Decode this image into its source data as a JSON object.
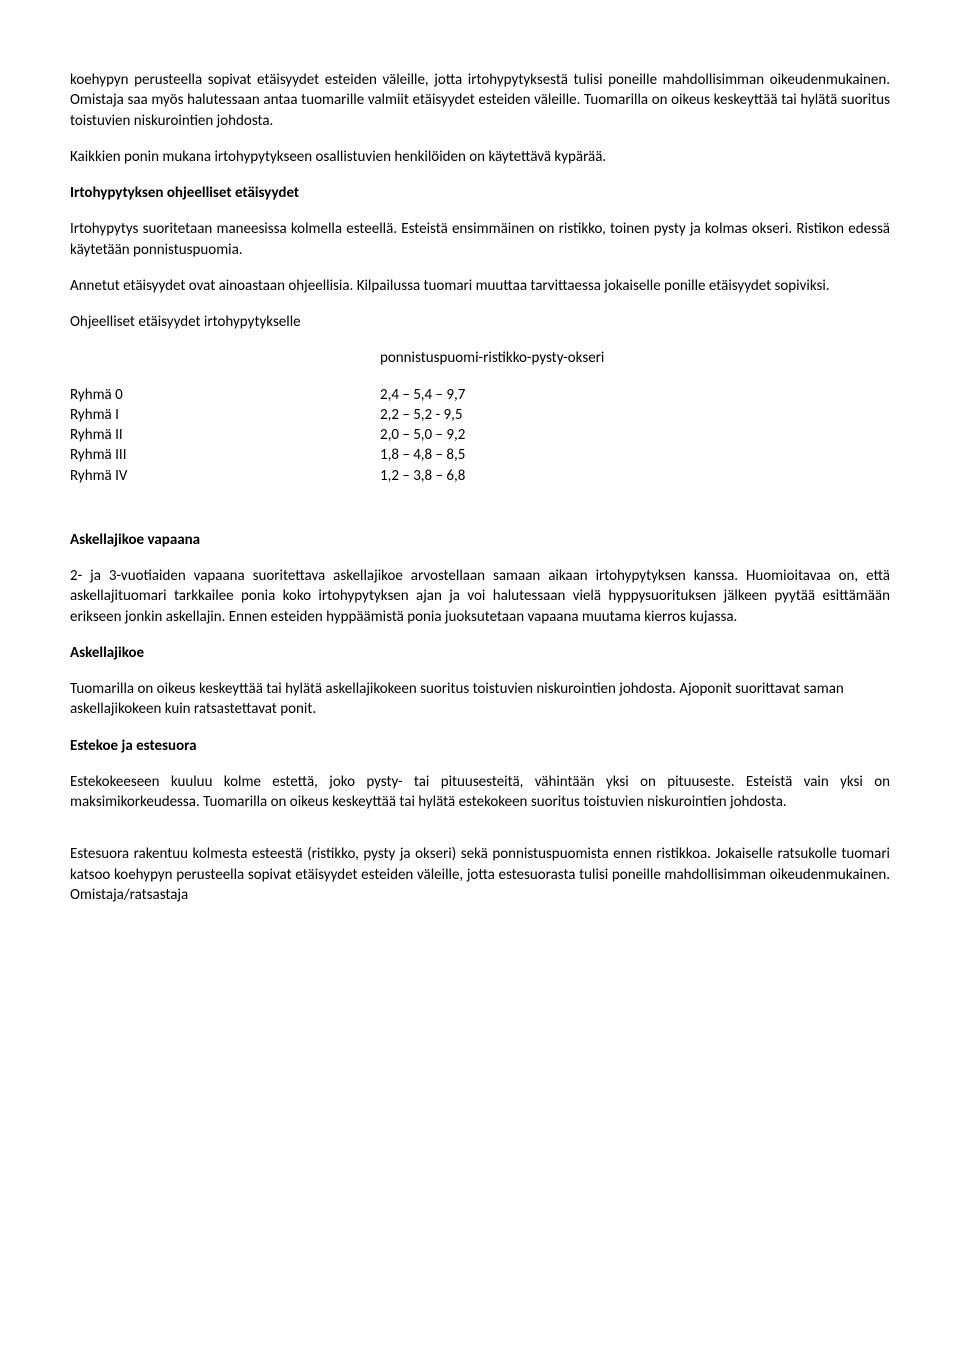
{
  "para1": "koehypyn perusteella sopivat etäisyydet esteiden väleille, jotta irtohypytyksestä tulisi poneille mahdollisimman oikeudenmukainen. Omistaja saa myös halutessaan antaa tuomarille valmiit etäisyydet esteiden väleille. Tuomarilla on oikeus keskeyttää tai hylätä suoritus toistuvien niskurointien johdosta.",
  "para2": "Kaikkien ponin mukana irtohypytykseen osallistuvien henkilöiden on käytettävä kypärää.",
  "heading1": "Irtohypytyksen ohjeelliset etäisyydet",
  "para3": "Irtohypytys suoritetaan maneesissa kolmella esteellä. Esteistä ensimmäinen on ristikko, toinen pysty ja kolmas okseri. Ristikon edessä käytetään ponnistuspuomia.",
  "para4": "Annetut etäisyydet ovat ainoastaan ohjeellisia. Kilpailussa tuomari muuttaa tarvittaessa jokaiselle ponille etäisyydet sopiviksi.",
  "para5": "Ohjeelliset etäisyydet irtohypytykselle",
  "tableHeader": "ponnistuspuomi-ristikko-pysty-okseri",
  "rows": [
    {
      "label": "Ryhmä 0",
      "value": "2,4 – 5,4 – 9,7"
    },
    {
      "label": "Ryhmä I",
      "value": "2,2 – 5,2 - 9,5"
    },
    {
      "label": "Ryhmä II",
      "value": "2,0 – 5,0 – 9,2"
    },
    {
      "label": "Ryhmä III",
      "value": "1,8 – 4,8 – 8,5"
    },
    {
      "label": "Ryhmä IV",
      "value": "1,2 – 3,8 – 6,8"
    }
  ],
  "heading2": "Askellajikoe vapaana",
  "para6": "2- ja 3-vuotiaiden vapaana suoritettava askellajikoe arvostellaan samaan aikaan irtohypytyksen kanssa. Huomioitavaa on, että askellajituomari tarkkailee ponia koko irtohypytyksen ajan ja voi halutessaan vielä hyppysuorituksen jälkeen pyytää esittämään erikseen jonkin askellajin. Ennen esteiden hyppäämistä ponia juoksutetaan vapaana muutama kierros kujassa.",
  "heading3": "Askellajikoe",
  "para7": "Tuomarilla on oikeus keskeyttää tai hylätä askellajikokeen suoritus toistuvien niskurointien johdosta.  Ajoponit suorittavat saman askellajikokeen kuin ratsastettavat ponit.",
  "heading4": "Estekoe ja estesuora",
  "para8": "Estekokeeseen kuuluu kolme estettä, joko pysty- tai pituusesteitä, vähintään yksi on pituuseste. Esteistä vain yksi on maksimikorkeudessa. Tuomarilla on oikeus keskeyttää tai hylätä estekokeen suoritus toistuvien niskurointien johdosta.",
  "para9": "Estesuora rakentuu kolmesta esteestä (ristikko, pysty ja okseri) sekä ponnistuspuomista ennen ristikkoa. Jokaiselle ratsukolle tuomari katsoo koehypyn perusteella sopivat etäisyydet esteiden väleille, jotta estesuorasta tulisi poneille mahdollisimman oikeudenmukainen. Omistaja/ratsastaja"
}
